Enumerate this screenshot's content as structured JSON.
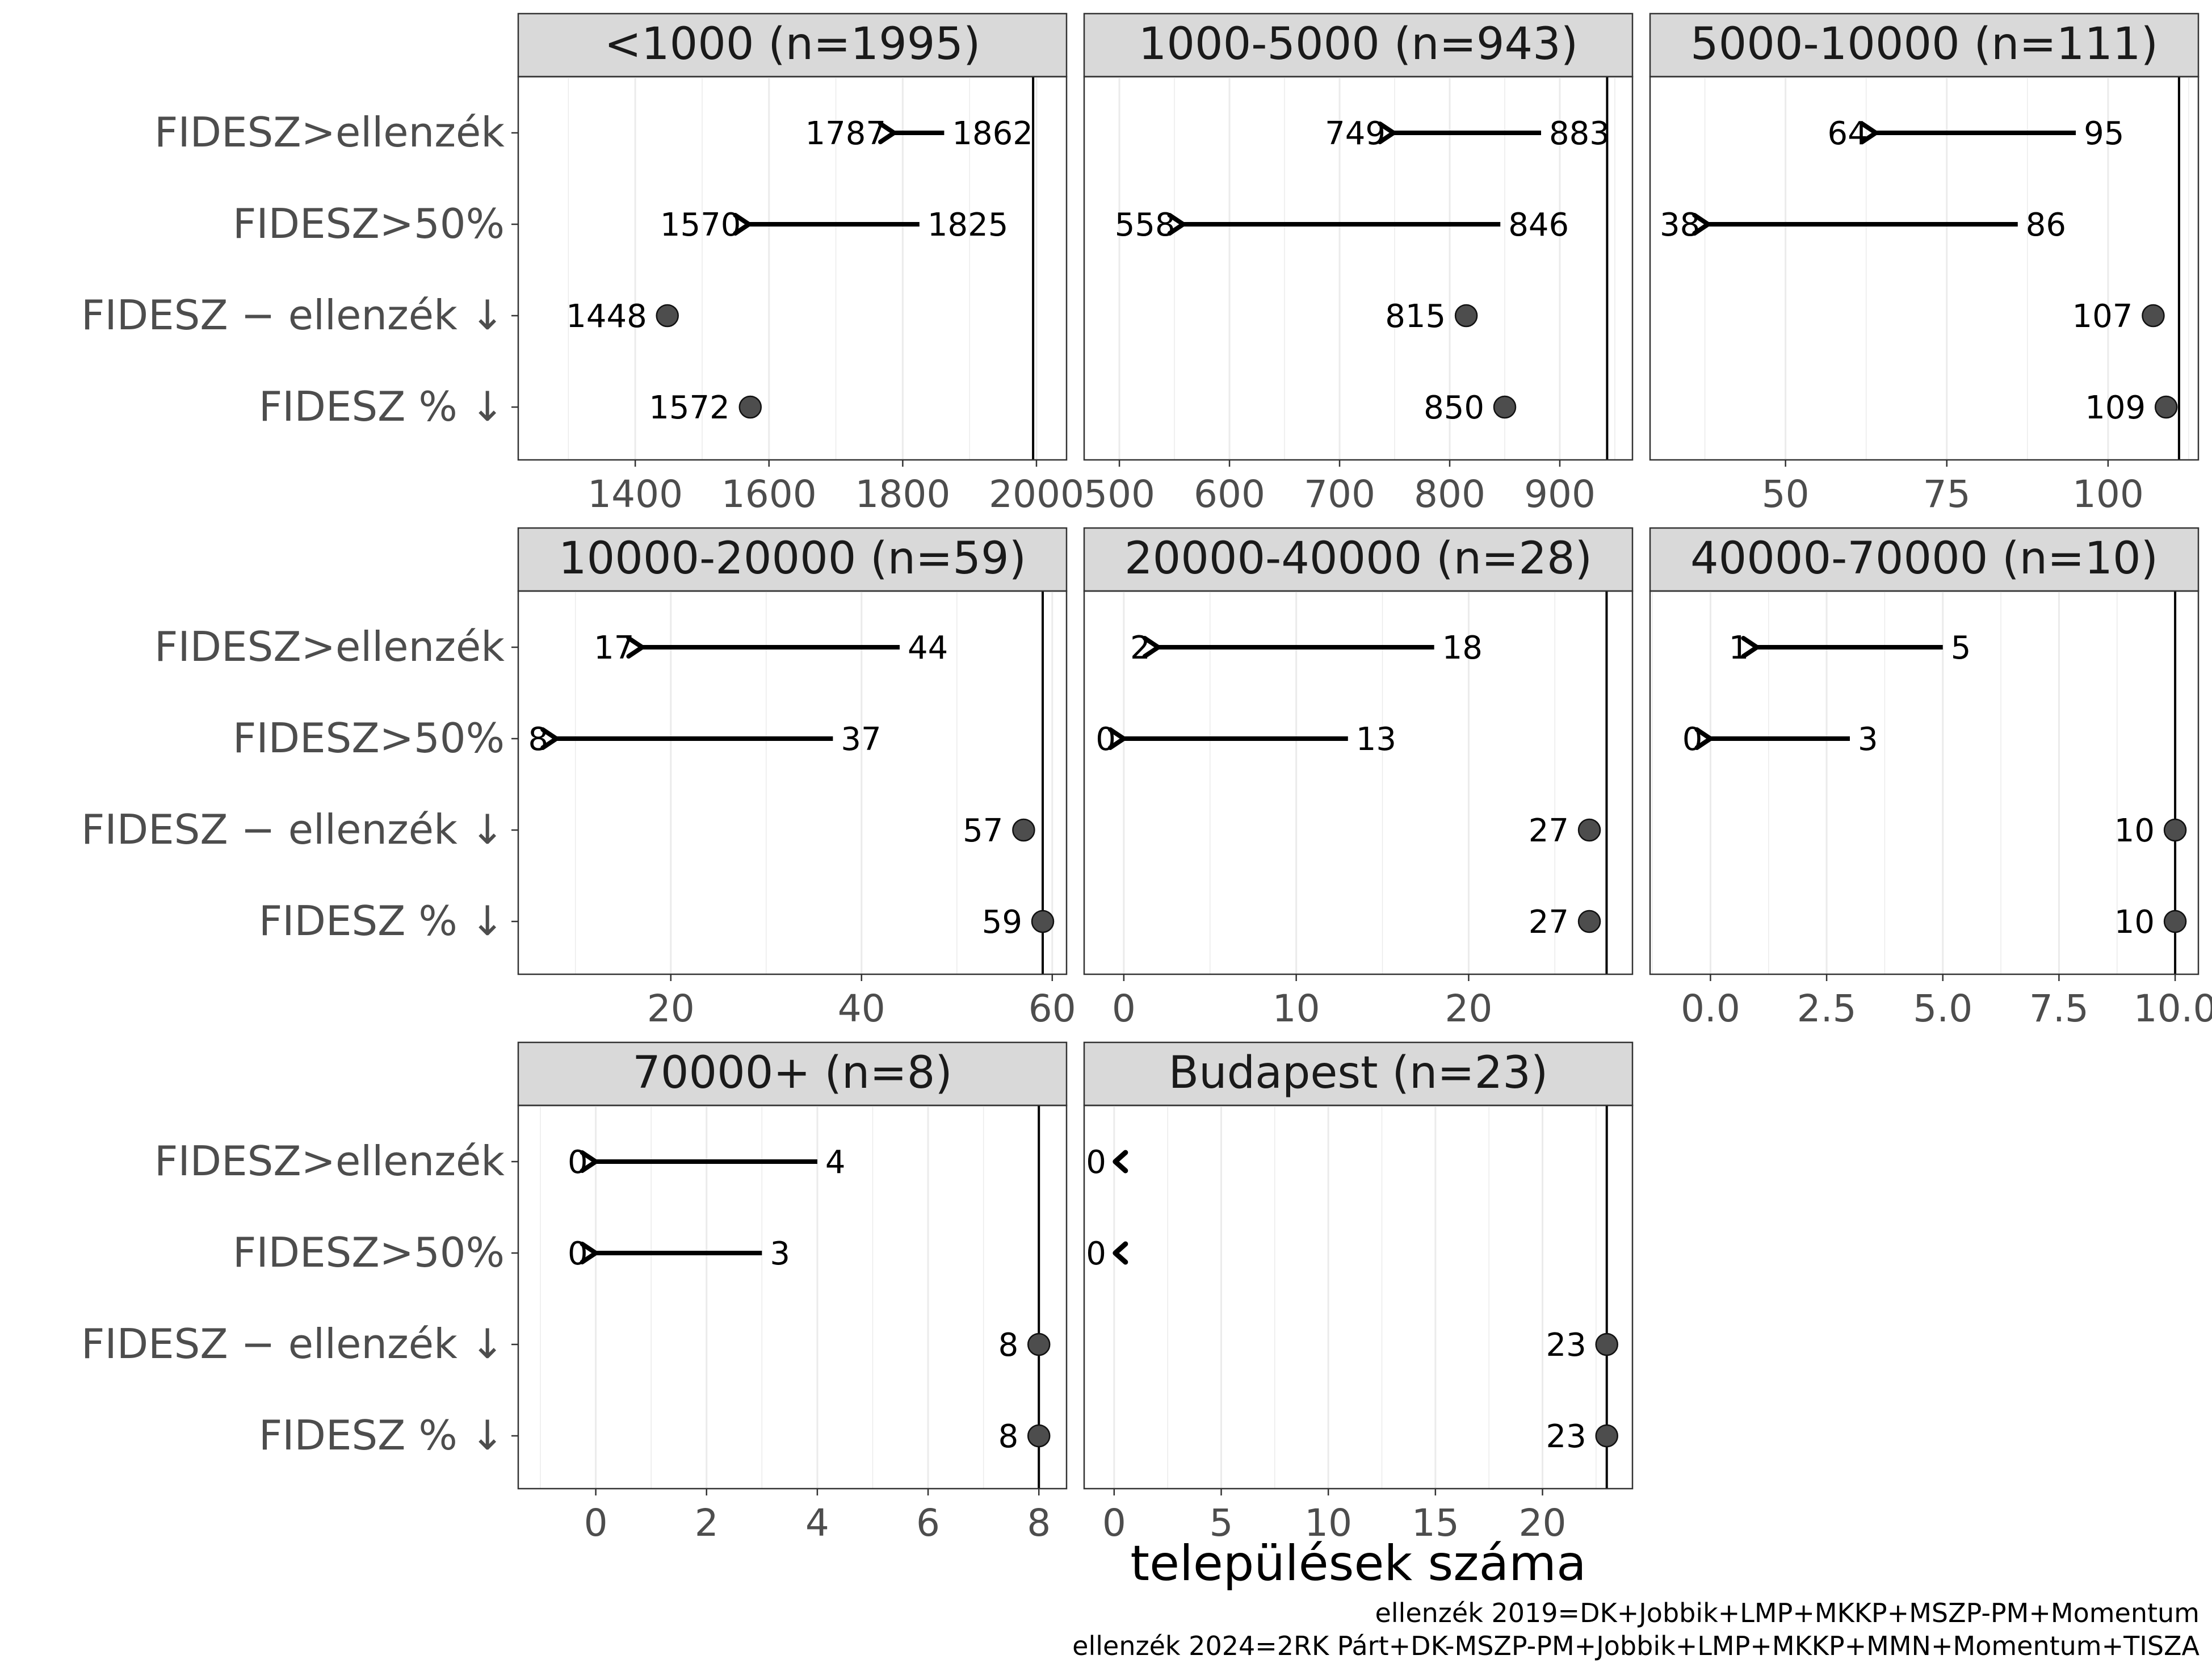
{
  "chart_data": {
    "type": "dumbbell",
    "xlabel": "települések száma",
    "row_labels": [
      "FIDESZ>ellenzék",
      "FIDESZ>50%",
      "FIDESZ − ellenzék ↓",
      "FIDESZ % ↓"
    ],
    "captions": [
      "ellenzék 2019=DK+Jobbik+LMP+MKKP+MSZP-PM+Momentum",
      "ellenzék 2024=2RK Párt+DK-MSZP-PM+Jobbik+LMP+MKKP+MMN+Momentum+TISZA"
    ],
    "colors": {
      "arrow": "#000000",
      "point": "#4d4d4d",
      "strip": "#d9d9d9",
      "grid": "#ebebeb",
      "axis_text": "#4d4d4d"
    },
    "panels": [
      {
        "title": "<1000 (n=1995)",
        "n": 1995,
        "xlim": [
          1225,
          2045
        ],
        "ticks": [
          1400,
          1600,
          1800,
          2000
        ],
        "tick_labels": [
          "1400",
          "1600",
          "1800",
          "2000"
        ],
        "arrows": [
          {
            "row": "FIDESZ>ellenzék",
            "from": 1862,
            "to": 1787,
            "from_label": "1862",
            "to_label": "1787"
          },
          {
            "row": "FIDESZ>50%",
            "from": 1825,
            "to": 1570,
            "from_label": "1825",
            "to_label": "1570"
          }
        ],
        "points": [
          {
            "row": "FIDESZ − ellenzék ↓",
            "value": 1448,
            "label": "1448"
          },
          {
            "row": "FIDESZ % ↓",
            "value": 1572,
            "label": "1572"
          }
        ]
      },
      {
        "title": "1000-5000 (n=943)",
        "n": 943,
        "xlim": [
          468,
          966
        ],
        "ticks": [
          500,
          600,
          700,
          800,
          900
        ],
        "tick_labels": [
          "500",
          "600",
          "700",
          "800",
          "900"
        ],
        "arrows": [
          {
            "row": "FIDESZ>ellenzék",
            "from": 883,
            "to": 749,
            "from_label": "883",
            "to_label": "749"
          },
          {
            "row": "FIDESZ>50%",
            "from": 846,
            "to": 558,
            "from_label": "846",
            "to_label": "558"
          }
        ],
        "points": [
          {
            "row": "FIDESZ − ellenzék ↓",
            "value": 815,
            "label": "815"
          },
          {
            "row": "FIDESZ % ↓",
            "value": 850,
            "label": "850"
          }
        ]
      },
      {
        "title": "5000-10000 (n=111)",
        "n": 111,
        "xlim": [
          29,
          114
        ],
        "ticks": [
          50,
          75,
          100
        ],
        "tick_labels": [
          "50",
          "75",
          "100"
        ],
        "arrows": [
          {
            "row": "FIDESZ>ellenzék",
            "from": 95,
            "to": 64,
            "from_label": "95",
            "to_label": "64"
          },
          {
            "row": "FIDESZ>50%",
            "from": 86,
            "to": 38,
            "from_label": "86",
            "to_label": "38"
          }
        ],
        "points": [
          {
            "row": "FIDESZ − ellenzék ↓",
            "value": 107,
            "label": "107"
          },
          {
            "row": "FIDESZ % ↓",
            "value": 109,
            "label": "109"
          }
        ]
      },
      {
        "title": "10000-20000 (n=59)",
        "n": 59,
        "xlim": [
          4,
          61.5
        ],
        "ticks": [
          20,
          40,
          60
        ],
        "tick_labels": [
          "20",
          "40",
          "60"
        ],
        "arrows": [
          {
            "row": "FIDESZ>ellenzék",
            "from": 44,
            "to": 17,
            "from_label": "44",
            "to_label": "17"
          },
          {
            "row": "FIDESZ>50%",
            "from": 37,
            "to": 8,
            "from_label": "37",
            "to_label": "8"
          }
        ],
        "points": [
          {
            "row": "FIDESZ − ellenzék ↓",
            "value": 57,
            "label": "57"
          },
          {
            "row": "FIDESZ % ↓",
            "value": 59,
            "label": "59"
          }
        ]
      },
      {
        "title": "20000-40000 (n=28)",
        "n": 28,
        "xlim": [
          -2.3,
          29.5
        ],
        "ticks": [
          0,
          10,
          20
        ],
        "tick_labels": [
          "0",
          "10",
          "20"
        ],
        "arrows": [
          {
            "row": "FIDESZ>ellenzék",
            "from": 18,
            "to": 2,
            "from_label": "18",
            "to_label": "2"
          },
          {
            "row": "FIDESZ>50%",
            "from": 13,
            "to": 0,
            "from_label": "13",
            "to_label": "0"
          }
        ],
        "points": [
          {
            "row": "FIDESZ − ellenzék ↓",
            "value": 27,
            "label": "27"
          },
          {
            "row": "FIDESZ % ↓",
            "value": 27,
            "label": "27"
          }
        ]
      },
      {
        "title": "40000-70000 (n=10)",
        "n": 10,
        "xlim": [
          -1.3,
          10.5
        ],
        "ticks": [
          0,
          2.5,
          5,
          7.5,
          10
        ],
        "tick_labels": [
          "0.0",
          "2.5",
          "5.0",
          "7.5",
          "10.0"
        ],
        "arrows": [
          {
            "row": "FIDESZ>ellenzék",
            "from": 5,
            "to": 1,
            "from_label": "5",
            "to_label": "1"
          },
          {
            "row": "FIDESZ>50%",
            "from": 3,
            "to": 0,
            "from_label": "3",
            "to_label": "0"
          }
        ],
        "points": [
          {
            "row": "FIDESZ − ellenzék ↓",
            "value": 10,
            "label": "10"
          },
          {
            "row": "FIDESZ % ↓",
            "value": 10,
            "label": "10"
          }
        ]
      },
      {
        "title": "70000+ (n=8)",
        "n": 8,
        "xlim": [
          -1.4,
          8.5
        ],
        "ticks": [
          0,
          2,
          4,
          6,
          8
        ],
        "tick_labels": [
          "0",
          "2",
          "4",
          "6",
          "8"
        ],
        "arrows": [
          {
            "row": "FIDESZ>ellenzék",
            "from": 4,
            "to": 0,
            "from_label": "4",
            "to_label": "0"
          },
          {
            "row": "FIDESZ>50%",
            "from": 3,
            "to": 0,
            "from_label": "3",
            "to_label": "0"
          }
        ],
        "points": [
          {
            "row": "FIDESZ − ellenzék ↓",
            "value": 8,
            "label": "8"
          },
          {
            "row": "FIDESZ % ↓",
            "value": 8,
            "label": "8"
          }
        ]
      },
      {
        "title": "Budapest (n=23)",
        "n": 23,
        "xlim": [
          -1.4,
          24.2
        ],
        "ticks": [
          0,
          5,
          10,
          15,
          20
        ],
        "tick_labels": [
          "0",
          "5",
          "10",
          "15",
          "20"
        ],
        "arrows": [
          {
            "row": "FIDESZ>ellenzék",
            "from": 0,
            "to": 0,
            "from_label": "",
            "to_label": "0"
          },
          {
            "row": "FIDESZ>50%",
            "from": 0,
            "to": 0,
            "from_label": "",
            "to_label": "0"
          }
        ],
        "points": [
          {
            "row": "FIDESZ − ellenzék ↓",
            "value": 23,
            "label": "23"
          },
          {
            "row": "FIDESZ % ↓",
            "value": 23,
            "label": "23"
          }
        ]
      }
    ]
  }
}
